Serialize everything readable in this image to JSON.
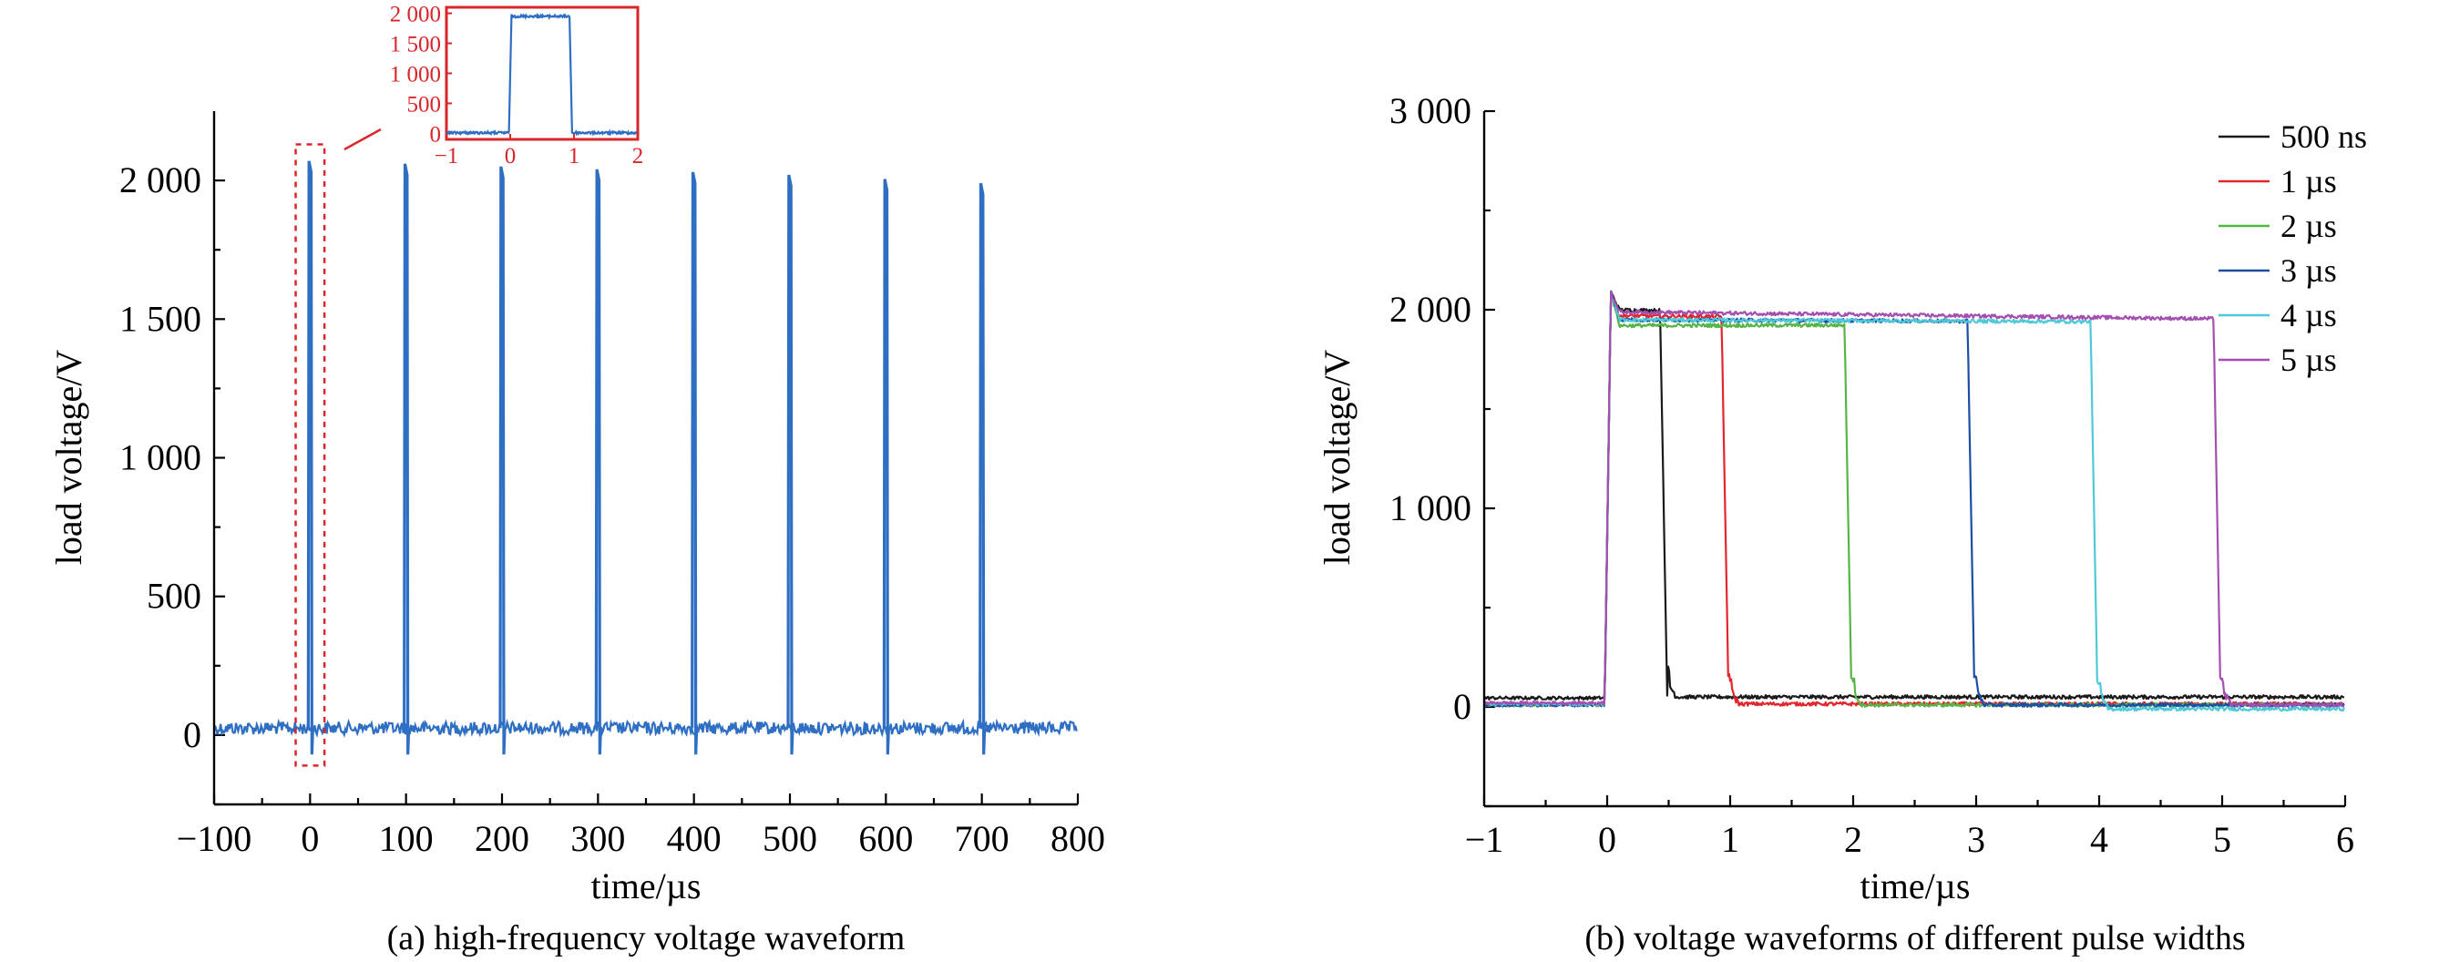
{
  "chart_data": [
    {
      "type": "line",
      "caption": "(a) high-frequency voltage waveform",
      "xlabel": "time/µs",
      "ylabel": "load voltage/V",
      "xlim": [
        -100,
        800
      ],
      "ylim": [
        -250,
        2250
      ],
      "xticks": [
        -100,
        0,
        100,
        200,
        300,
        400,
        500,
        600,
        700,
        800
      ],
      "xtick_labels": [
        "−100",
        "0",
        "100",
        "200",
        "300",
        "400",
        "500",
        "600",
        "700",
        "800"
      ],
      "yticks": [
        0,
        500,
        1000,
        1500,
        2000
      ],
      "ytick_labels": [
        "0",
        "500",
        "1 000",
        "1 500",
        "2 000"
      ],
      "color": "#2e6fc4",
      "baseline": 25,
      "pulse_times": [
        0,
        100,
        200,
        300,
        400,
        500,
        600,
        700
      ],
      "pulse_peaks": [
        2070,
        2060,
        2050,
        2040,
        2030,
        2020,
        2005,
        1990
      ],
      "pulse_width": 1,
      "highlight_box": {
        "x0": -15,
        "x1": 15,
        "y0": -110,
        "y1": 2130,
        "color": "#d9262b"
      },
      "inset": {
        "xlim": [
          -1,
          2
        ],
        "ylim": [
          -100,
          2100
        ],
        "xticks": [
          -1,
          0,
          1,
          2
        ],
        "xtick_labels": [
          "−1",
          "0",
          "1",
          "2"
        ],
        "yticks": [
          0,
          500,
          1000,
          1500,
          2000
        ],
        "ytick_labels": [
          "0",
          "500",
          "1 000",
          "1 500",
          "2 000"
        ],
        "border_color": "#d9262b",
        "pulse_start": 0,
        "pulse_end": 0.95,
        "level": 1950,
        "baseline": 10
      }
    },
    {
      "type": "line",
      "caption": "(b) voltage waveforms of different pulse widths",
      "xlabel": "time/µs",
      "ylabel": "load voltage/V",
      "xlim": [
        -1,
        6
      ],
      "ylim": [
        -500,
        3000
      ],
      "xticks": [
        -1,
        0,
        1,
        2,
        3,
        4,
        5,
        6
      ],
      "xtick_labels": [
        "−1",
        "0",
        "1",
        "2",
        "3",
        "4",
        "5",
        "6"
      ],
      "yticks": [
        0,
        1000,
        2000,
        3000
      ],
      "ytick_labels": [
        "0",
        "1 000",
        "2 000",
        "3 000"
      ],
      "legend_position": "top-right",
      "series": [
        {
          "name": "500 ns",
          "color": "#1a1a1a",
          "width_us": 0.45,
          "base_before": 45,
          "base_after": 50,
          "top": 2000
        },
        {
          "name": "1 µs",
          "color": "#e3262b",
          "width_us": 0.95,
          "base_before": 15,
          "base_after": 15,
          "top": 1970
        },
        {
          "name": "2 µs",
          "color": "#55b545",
          "width_us": 1.95,
          "base_before": 10,
          "base_after": 10,
          "top": 1920
        },
        {
          "name": "3 µs",
          "color": "#1b4fa6",
          "width_us": 2.95,
          "base_before": 10,
          "base_after": 10,
          "top": 1950
        },
        {
          "name": "4 µs",
          "color": "#4fc8d8",
          "width_us": 3.95,
          "base_before": 15,
          "base_after": -10,
          "top": 1950
        },
        {
          "name": "5 µs",
          "color": "#a44fb0",
          "width_us": 4.95,
          "base_before": 20,
          "base_after": 10,
          "top": 1990
        }
      ]
    }
  ]
}
